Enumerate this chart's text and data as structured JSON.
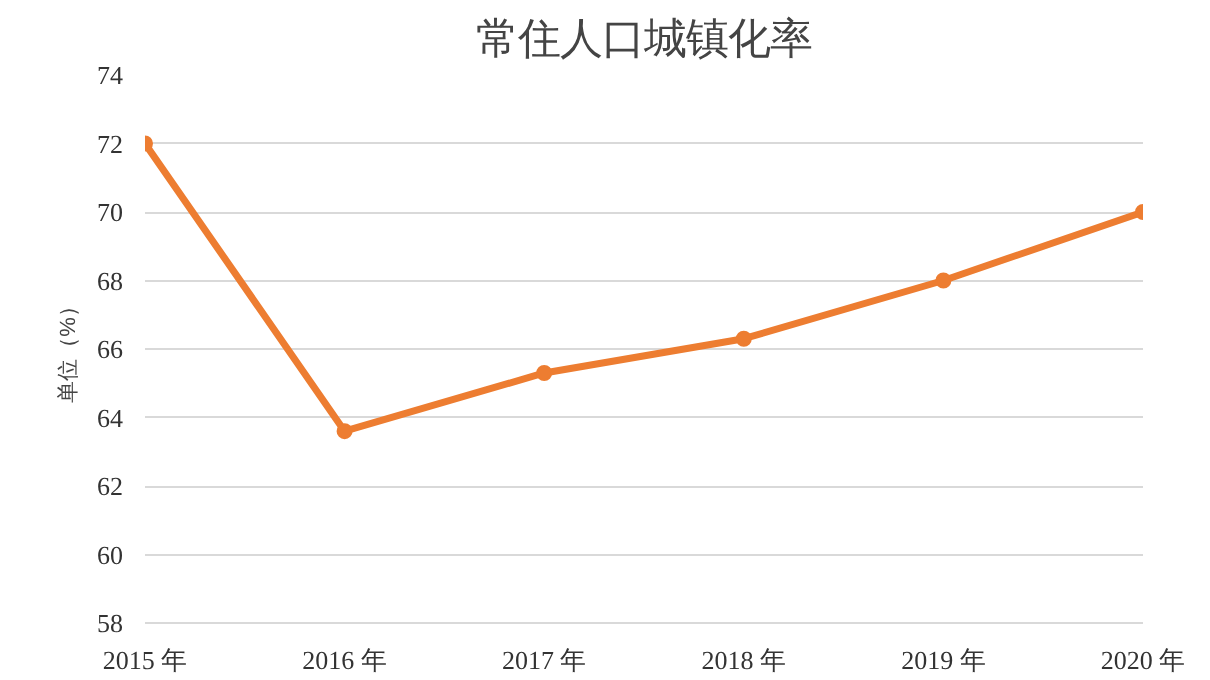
{
  "chart_data": {
    "type": "line",
    "title": "常住人口城镇化率",
    "ylabel": "单位（%）",
    "categories": [
      "2015 年",
      "2016 年",
      "2017 年",
      "2018 年",
      "2019 年",
      "2020 年"
    ],
    "series": [
      {
        "color": "#ed7d31",
        "values": [
          72,
          63.6,
          65.3,
          66.3,
          68,
          70
        ]
      }
    ],
    "ylim": [
      58,
      74
    ],
    "yticks": [
      58,
      60,
      62,
      64,
      66,
      68,
      70,
      72,
      74
    ],
    "grid": "y",
    "marker": "circle",
    "line_style": "solid"
  }
}
